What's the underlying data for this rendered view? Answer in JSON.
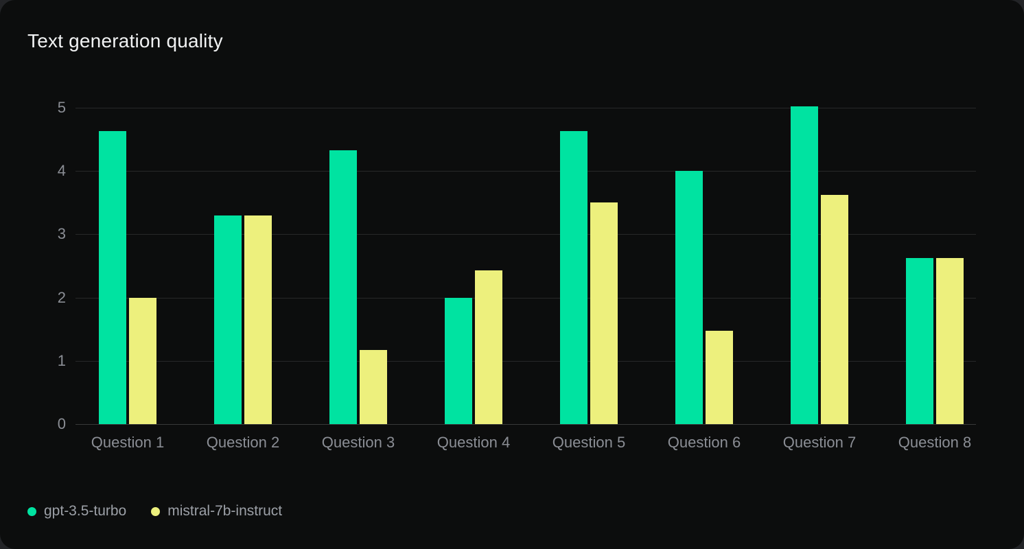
{
  "chart_data": {
    "type": "bar",
    "title": "Text generation quality",
    "categories": [
      "Question 1",
      "Question 2",
      "Question 3",
      "Question 4",
      "Question 5",
      "Question 6",
      "Question 7",
      "Question 8"
    ],
    "series": [
      {
        "name": "gpt-3.5-turbo",
        "color": "#00e3a1",
        "values": [
          4.63,
          3.3,
          4.33,
          2.0,
          4.63,
          4.0,
          5.02,
          2.63
        ]
      },
      {
        "name": "mistral-7b-instruct",
        "color": "#edf07d",
        "values": [
          2.0,
          3.3,
          1.17,
          2.43,
          3.5,
          1.48,
          3.62,
          2.63
        ]
      }
    ],
    "xlabel": "",
    "ylabel": "",
    "ylim": [
      0,
      5
    ],
    "yticks": [
      0,
      1,
      2,
      3,
      4,
      5
    ],
    "grid": true,
    "legend_position": "bottom-left"
  },
  "colors": {
    "card_background": "#0c0d0d",
    "outer_background": "#232427",
    "gridline": "#272829",
    "zero_line": "#38393a",
    "axis_label_text": "#8b8e95",
    "title_text": "#f1f2f3",
    "legend_text": "#9ca0a7"
  }
}
